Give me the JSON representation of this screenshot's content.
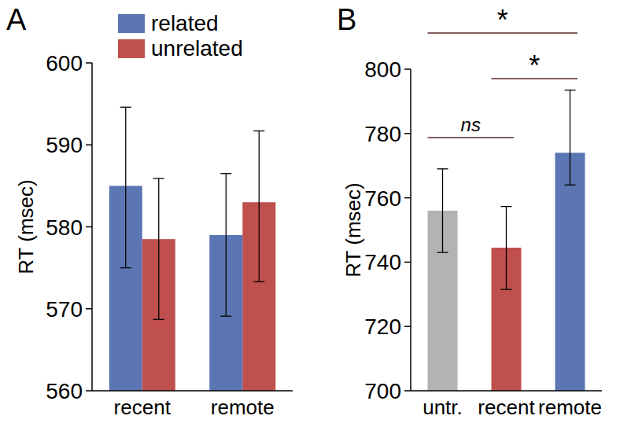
{
  "chart_data": [
    {
      "type": "bar",
      "title": "A",
      "y_label": "RT (msec)",
      "categories": [
        "recent",
        "remote"
      ],
      "series": [
        {
          "name": "related",
          "color": "#5b76b3",
          "values": [
            585,
            579
          ],
          "errors_minus": [
            10,
            9.9
          ],
          "errors_plus": [
            9.6,
            7.5
          ]
        },
        {
          "name": "unrelated",
          "color": "#c0504d",
          "values": [
            578.5,
            583
          ],
          "errors_minus": [
            9.8,
            9.7
          ],
          "errors_plus": [
            7.4,
            8.7
          ]
        }
      ],
      "ylim": [
        560,
        600
      ],
      "yticks": [
        560,
        570,
        580,
        590,
        600
      ],
      "grid": false,
      "legend": "top-left"
    },
    {
      "type": "bar",
      "title": "B",
      "y_label": "RT (msec)",
      "categories": [
        "untr.",
        "recent",
        "remote"
      ],
      "values": [
        756,
        744.5,
        774
      ],
      "errors_minus": [
        13,
        13,
        10
      ],
      "errors_plus": [
        13,
        12.8,
        19.5
      ],
      "colors": [
        "#b3b3b3",
        "#c0504d",
        "#5b76b3"
      ],
      "ylim": [
        700,
        800
      ],
      "yticks": [
        700,
        720,
        740,
        760,
        780,
        800
      ],
      "grid": false,
      "annotations": [
        {
          "text": "ns",
          "pair": [
            "untr.",
            "recent"
          ]
        },
        {
          "text": "*",
          "pair": [
            "recent",
            "remote"
          ]
        },
        {
          "text": "*",
          "pair": [
            "untr.",
            "remote"
          ]
        }
      ]
    }
  ]
}
